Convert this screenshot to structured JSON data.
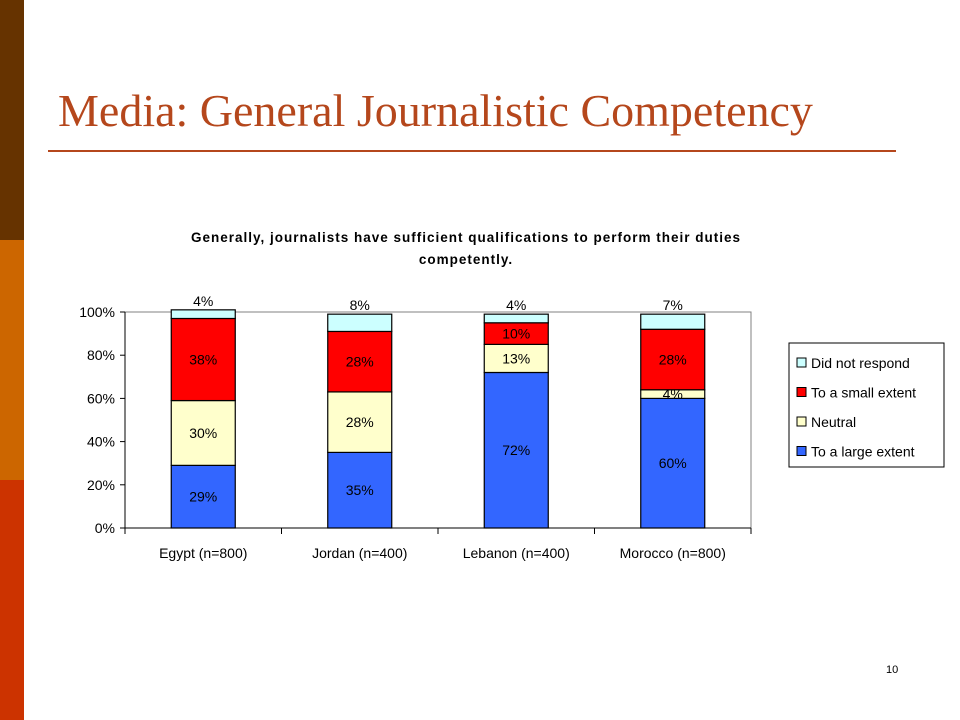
{
  "slide": {
    "title": "Media: General Journalistic Competency",
    "page_number": "10"
  },
  "colors": {
    "sidebar": [
      "#663300",
      "#CC6600",
      "#CC3300"
    ],
    "title": "#B5471C"
  },
  "chart_data": {
    "type": "bar",
    "stacked": true,
    "title_lines": [
      "Generally, journalists have sufficient qualifications to perform their duties",
      "competently."
    ],
    "categories": [
      "Egypt (n=800)",
      "Jordan (n=400)",
      "Lebanon (n=400)",
      "Morocco (n=800)"
    ],
    "ylim": [
      0,
      100
    ],
    "yticks": [
      "0%",
      "20%",
      "40%",
      "60%",
      "80%",
      "100%"
    ],
    "grid": false,
    "legend_position": "right",
    "series": [
      {
        "name": "To a large extent",
        "color": "#3366FF",
        "values": [
          29,
          35,
          72,
          60
        ],
        "labels": [
          "29%",
          "35%",
          "72%",
          "60%"
        ]
      },
      {
        "name": "Neutral",
        "color": "#FFFFCC",
        "values": [
          30,
          28,
          13,
          4
        ],
        "labels": [
          "30%",
          "28%",
          "13%",
          "4%"
        ]
      },
      {
        "name": "To a small extent",
        "color": "#FF0000",
        "values": [
          38,
          28,
          10,
          28
        ],
        "labels": [
          "38%",
          "28%",
          "10%",
          "28%"
        ]
      },
      {
        "name": "Did not respond",
        "color": "#CCFFFF",
        "values": [
          4,
          8,
          4,
          7
        ],
        "labels": [
          "4%",
          "8%",
          "4%",
          "7%"
        ]
      }
    ]
  }
}
